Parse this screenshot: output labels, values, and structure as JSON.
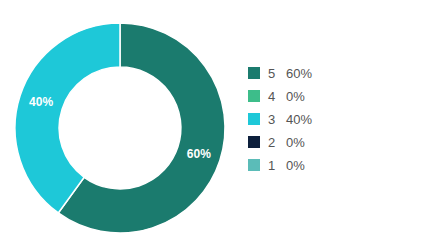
{
  "chart_data": {
    "type": "pie",
    "categories": [
      "5   60%",
      "4   0%",
      "3   40%",
      "2   0%",
      "1   0%"
    ],
    "values": [
      60,
      0,
      40,
      0,
      0
    ],
    "value_labels": [
      "60%",
      null,
      "40%",
      null,
      null
    ],
    "colors": [
      "#1b7b6e",
      "#3dbd8a",
      "#1ec8d8",
      "#0d1f3c",
      "#5bbcb8"
    ],
    "data_labels": true,
    "legend": "right"
  }
}
